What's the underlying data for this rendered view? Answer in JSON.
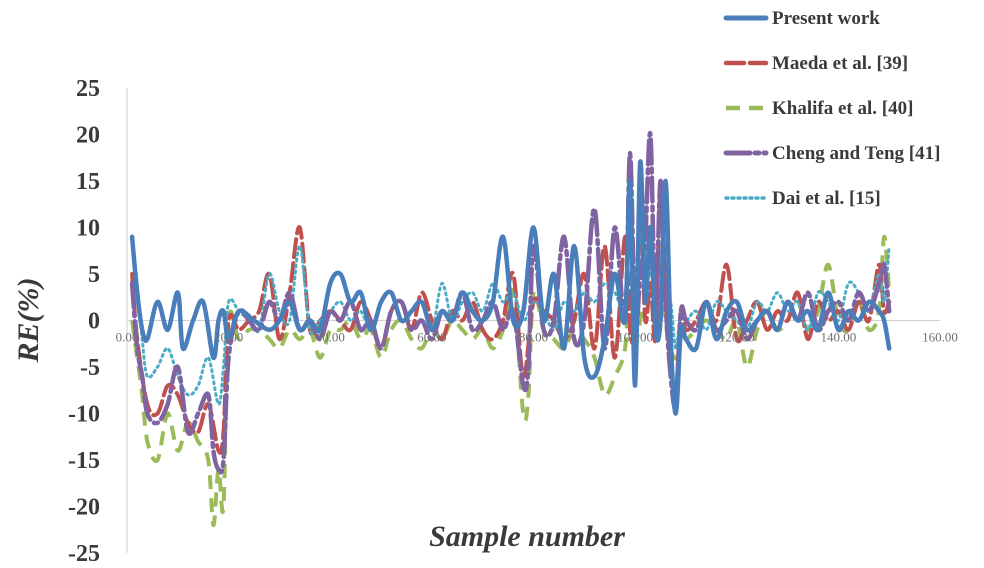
{
  "chart_data": {
    "type": "line",
    "xlabel": "Sample number",
    "ylabel": "RE(%)",
    "xlim": [
      0,
      160
    ],
    "ylim": [
      -25,
      25
    ],
    "x_ticks": [
      "0.00",
      "20.00",
      "40.00",
      "60.00",
      "80.00",
      "100.00",
      "120.00",
      "140.00",
      "160.00"
    ],
    "y_ticks": [
      "25",
      "20",
      "15",
      "10",
      "5",
      "0",
      "-5",
      "-10",
      "-15",
      "-20",
      "-25"
    ],
    "legend_position": "top-right",
    "grid": false,
    "series": [
      {
        "name": "Present work",
        "color": "#4a7ebb",
        "style": "solid",
        "x": [
          1,
          2,
          3,
          4,
          6,
          8,
          10,
          11,
          13,
          15,
          17,
          18,
          19,
          20,
          22,
          25,
          28,
          30,
          32,
          34,
          36,
          38,
          40,
          42,
          44,
          46,
          48,
          50,
          52,
          54,
          56,
          58,
          60,
          62,
          64,
          66,
          68,
          70,
          72,
          74,
          76,
          78,
          80,
          82,
          84,
          86,
          88,
          90,
          92,
          94,
          96,
          98,
          99,
          100,
          101,
          102,
          103,
          104,
          105,
          106,
          107,
          108,
          109,
          110,
          112,
          114,
          116,
          118,
          120,
          122,
          124,
          126,
          128,
          130,
          132,
          134,
          136,
          138,
          140,
          142,
          144,
          146,
          148,
          149,
          150
        ],
        "y": [
          9,
          3,
          -1,
          -2,
          2,
          -1,
          3,
          -3,
          0,
          2,
          -4,
          0,
          1,
          -2,
          1,
          0,
          -1,
          0,
          2,
          -1,
          0,
          -1,
          4,
          5,
          2,
          3,
          -1,
          2,
          3,
          0,
          1,
          2,
          -1,
          1,
          0,
          3,
          1,
          0,
          2,
          9,
          0,
          1,
          10,
          0,
          5,
          -3,
          8,
          -4,
          -6,
          -2,
          5,
          0,
          15,
          -7,
          17,
          2,
          10,
          -1,
          0,
          15,
          -2,
          -10,
          -1,
          -2,
          -3,
          2,
          -2,
          1,
          2,
          -1,
          0,
          1,
          -1,
          2,
          0,
          1,
          -1,
          3,
          -1,
          1,
          0,
          2,
          1,
          0,
          -3
        ]
      },
      {
        "name": "Maeda et al. [39]",
        "color": "#c0504d",
        "style": "longdash",
        "x": [
          1,
          2,
          4,
          6,
          8,
          10,
          12,
          14,
          16,
          18,
          19,
          20,
          22,
          24,
          26,
          28,
          30,
          32,
          34,
          36,
          38,
          40,
          42,
          44,
          46,
          48,
          50,
          52,
          54,
          56,
          58,
          60,
          62,
          64,
          66,
          68,
          70,
          72,
          74,
          76,
          78,
          80,
          82,
          84,
          86,
          88,
          90,
          92,
          94,
          96,
          98,
          99,
          100,
          101,
          102,
          103,
          104,
          105,
          106,
          107,
          108,
          109,
          110,
          112,
          114,
          116,
          118,
          120,
          122,
          124,
          126,
          128,
          130,
          132,
          134,
          136,
          138,
          140,
          142,
          144,
          146,
          148,
          149,
          150
        ],
        "y": [
          5,
          -2,
          -9,
          -10,
          -7,
          -8,
          -11,
          -12,
          -9,
          -14,
          -12,
          0,
          -1,
          0,
          1,
          5,
          -2,
          3,
          10,
          -1,
          0,
          1,
          0,
          -1,
          2,
          0,
          -3,
          1,
          2,
          -1,
          3,
          0,
          -2,
          1,
          0,
          2,
          -1,
          -2,
          0,
          5,
          -6,
          2,
          1,
          0,
          -2,
          0,
          5,
          -3,
          8,
          -4,
          9,
          -1,
          -1,
          12,
          0,
          4,
          -2,
          14,
          3,
          -5,
          -8,
          1,
          -1,
          0,
          2,
          0,
          6,
          -2,
          0,
          2,
          -1,
          1,
          0,
          3,
          -2,
          2,
          0,
          1,
          -1,
          2,
          0,
          6,
          1,
          2
        ]
      },
      {
        "name": "Khalifa et al. [40]",
        "color": "#9bbb59",
        "style": "dash",
        "x": [
          1,
          2,
          3,
          4,
          6,
          8,
          10,
          12,
          14,
          16,
          17,
          18,
          19,
          20,
          22,
          24,
          26,
          28,
          30,
          32,
          34,
          36,
          38,
          40,
          42,
          44,
          46,
          48,
          50,
          52,
          54,
          56,
          58,
          60,
          62,
          64,
          66,
          68,
          70,
          72,
          74,
          76,
          78,
          79,
          80,
          82,
          84,
          86,
          88,
          90,
          92,
          94,
          96,
          98,
          99,
          100,
          101,
          102,
          103,
          104,
          105,
          106,
          107,
          108,
          109,
          110,
          112,
          114,
          116,
          118,
          120,
          122,
          124,
          126,
          128,
          130,
          132,
          134,
          136,
          138,
          140,
          142,
          144,
          146,
          148,
          149,
          150
        ],
        "y": [
          0,
          -4,
          -8,
          -13,
          -15,
          -10,
          -14,
          -11,
          -13,
          -15,
          -22,
          -16,
          -20,
          0,
          -2,
          -1,
          -1,
          -2,
          -3,
          -1,
          -2,
          -1,
          -4,
          -1,
          -1,
          0,
          -2,
          -1,
          -4,
          -1,
          0,
          -2,
          -3,
          -1,
          -2,
          0,
          -1,
          -2,
          -1,
          -3,
          -1,
          3,
          -10,
          -8,
          3,
          -1,
          -2,
          -3,
          -1,
          -2,
          -4,
          -8,
          -6,
          -3,
          5,
          -2,
          0,
          3,
          10,
          -2,
          7,
          0,
          -3,
          -4,
          -1,
          -2,
          -1,
          0,
          -1,
          -2,
          0,
          -5,
          -1,
          1,
          -1,
          0,
          2,
          -1,
          1,
          6,
          0,
          -1,
          2,
          -1,
          1,
          9,
          3
        ]
      },
      {
        "name": "Cheng and Teng [41]",
        "color": "#8064a2",
        "style": "longdashdot",
        "x": [
          1,
          2,
          3,
          4,
          6,
          8,
          10,
          12,
          14,
          16,
          17,
          18,
          19,
          20,
          22,
          24,
          26,
          28,
          30,
          32,
          34,
          36,
          38,
          40,
          42,
          44,
          46,
          48,
          50,
          52,
          54,
          56,
          58,
          60,
          62,
          64,
          66,
          68,
          70,
          72,
          74,
          76,
          78,
          79,
          80,
          82,
          84,
          86,
          88,
          90,
          92,
          94,
          96,
          98,
          99,
          100,
          101,
          102,
          103,
          104,
          105,
          106,
          107,
          108,
          109,
          110,
          112,
          114,
          116,
          118,
          120,
          122,
          124,
          126,
          128,
          130,
          132,
          134,
          136,
          138,
          140,
          142,
          144,
          146,
          148,
          149,
          150
        ],
        "y": [
          4,
          -3,
          -6,
          -10,
          -11,
          -9,
          -5,
          -12,
          -10,
          -8,
          -14,
          -16,
          -15,
          -4,
          1,
          0,
          -1,
          2,
          0,
          3,
          -1,
          0,
          -2,
          1,
          0,
          2,
          -1,
          0,
          -3,
          1,
          2,
          -1,
          0,
          -2,
          1,
          0,
          3,
          -1,
          0,
          2,
          -1,
          1,
          -7,
          -5,
          8,
          -1,
          0,
          9,
          -2,
          0,
          12,
          -3,
          10,
          0,
          18,
          -1,
          5,
          9,
          20,
          0,
          15,
          2,
          -6,
          -9,
          1,
          0,
          -1,
          2,
          -1,
          0,
          1,
          -2,
          0,
          1,
          -1,
          2,
          0,
          3,
          -1,
          1,
          2,
          0,
          3,
          1,
          4,
          6,
          1
        ]
      },
      {
        "name": "Dai et al. [15]",
        "color": "#4bacc6",
        "style": "dot",
        "x": [
          1,
          2,
          3,
          4,
          6,
          8,
          10,
          12,
          14,
          16,
          18,
          19,
          20,
          22,
          24,
          26,
          28,
          30,
          32,
          34,
          36,
          38,
          40,
          42,
          44,
          46,
          48,
          50,
          52,
          54,
          56,
          58,
          60,
          62,
          64,
          66,
          68,
          70,
          72,
          74,
          76,
          78,
          80,
          82,
          84,
          86,
          88,
          90,
          92,
          94,
          96,
          98,
          99,
          100,
          101,
          102,
          103,
          104,
          105,
          106,
          107,
          108,
          109,
          110,
          112,
          114,
          116,
          118,
          120,
          122,
          124,
          126,
          128,
          130,
          132,
          134,
          136,
          138,
          140,
          142,
          144,
          146,
          148,
          149,
          150
        ],
        "y": [
          9,
          4,
          -2,
          -6,
          -5,
          -3,
          -6,
          -8,
          -7,
          -4,
          -9,
          -5,
          2,
          1,
          0,
          -1,
          5,
          1,
          0,
          8,
          -1,
          0,
          1,
          2,
          0,
          1,
          -1,
          2,
          3,
          0,
          1,
          2,
          -1,
          4,
          0,
          2,
          3,
          1,
          4,
          2,
          3,
          0,
          2,
          1,
          -1,
          2,
          1,
          3,
          2,
          4,
          3,
          2,
          16,
          3,
          9,
          12,
          5,
          6,
          5,
          3,
          2,
          -3,
          1,
          0,
          1,
          -1,
          2,
          1,
          0,
          -1,
          2,
          1,
          3,
          1,
          2,
          -1,
          3,
          2,
          0,
          4,
          3,
          1,
          5,
          2,
          8
        ]
      }
    ]
  }
}
